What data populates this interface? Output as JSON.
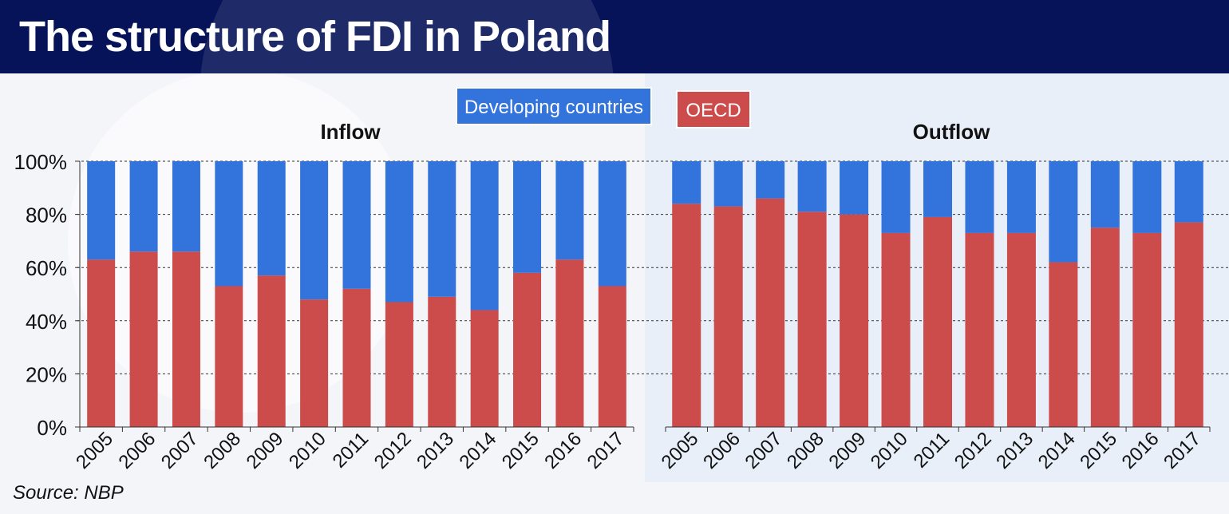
{
  "title": "The structure of FDI in Poland",
  "source": "Source: NBP",
  "colors": {
    "oecd": "#cc4b4b",
    "developing": "#3273dc",
    "header": "#061358",
    "panel_outflow": "#e8eff9"
  },
  "legend": {
    "developing": "Developing countries",
    "oecd": "OECD"
  },
  "chart_data": [
    {
      "type": "bar",
      "stacked": true,
      "title": "Inflow",
      "categories": [
        "2005",
        "2006",
        "2007",
        "2008",
        "2009",
        "2010",
        "2011",
        "2012",
        "2013",
        "2014",
        "2015",
        "2016",
        "2017"
      ],
      "series": [
        {
          "name": "OECD",
          "values": [
            63,
            66,
            66,
            53,
            57,
            48,
            52,
            47,
            49,
            44,
            58,
            63,
            53
          ]
        },
        {
          "name": "Developing countries",
          "values": [
            37,
            34,
            34,
            47,
            43,
            52,
            48,
            53,
            51,
            56,
            42,
            37,
            47
          ]
        }
      ],
      "ylim": [
        0,
        100
      ],
      "yticks": [
        "0%",
        "20%",
        "40%",
        "60%",
        "80%",
        "100%"
      ],
      "grid": true,
      "legend_position": "top-center"
    },
    {
      "type": "bar",
      "stacked": true,
      "title": "Outflow",
      "categories": [
        "2005",
        "2006",
        "2007",
        "2008",
        "2009",
        "2010",
        "2011",
        "2012",
        "2013",
        "2014",
        "2015",
        "2016",
        "2017"
      ],
      "series": [
        {
          "name": "OECD",
          "values": [
            84,
            83,
            86,
            81,
            80,
            73,
            79,
            73,
            73,
            62,
            75,
            73,
            77
          ]
        },
        {
          "name": "Developing countries",
          "values": [
            16,
            17,
            14,
            19,
            20,
            27,
            21,
            27,
            27,
            38,
            25,
            27,
            23
          ]
        }
      ],
      "ylim": [
        0,
        100
      ],
      "grid": true
    }
  ]
}
